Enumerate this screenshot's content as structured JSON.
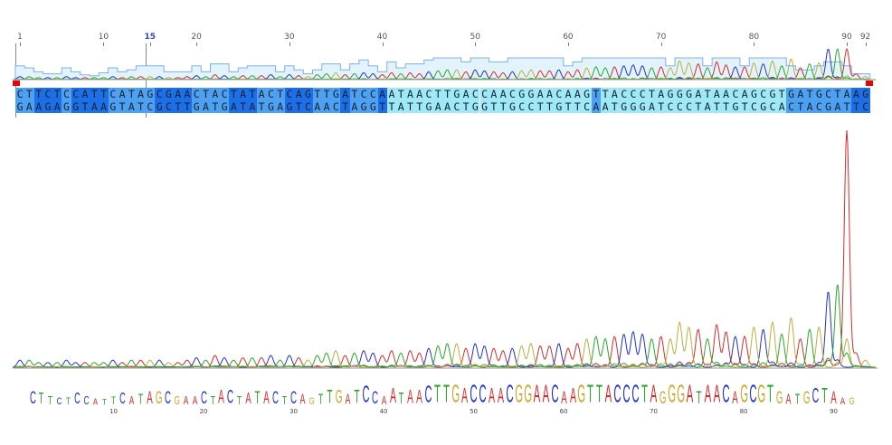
{
  "ruler": {
    "labels": [
      "1",
      "10",
      "15",
      "20",
      "30",
      "40",
      "50",
      "60",
      "70",
      "80",
      "90",
      "92"
    ],
    "positions": [
      1,
      10,
      15,
      20,
      30,
      40,
      50,
      60,
      70,
      80,
      90,
      92
    ],
    "cursor_position": 15
  },
  "sequence": {
    "top": "CTTCTCCATTCATAGCGAACTACTATACTCAGTTGATCCAATAACTTGACCAACGGAACAAGTTACCCTAGGGATAACAGCGTGATGCTAAG",
    "bottom": "GAAGAGGTAAGTATCGCTTGATGATATGAGTCAACTAGGTTATTGAACTGGTTGCCTTGTTCAATGGGATCCCTATTGTCGCACTACGATTC",
    "shading": "mmdddmddddmmmmmddddmmmmdddmmmdddmmmdmmmdllllllllllllllllllllllmllllllllllllllllllllmmmmmmmddd"
  },
  "logo": {
    "tick_labels": [
      "10",
      "20",
      "30",
      "40",
      "50",
      "60",
      "70",
      "80",
      "90"
    ],
    "tick_positions": [
      10,
      20,
      30,
      40,
      50,
      60,
      70,
      80,
      90
    ]
  },
  "colors": {
    "A": "#d42c2c",
    "C": "#2233cc",
    "G": "#c9a82a",
    "T": "#2aa82a",
    "trace_G": "#b8b040",
    "quality": "#7fb0ea",
    "quality_fill": "#e3f3fb"
  },
  "chart_data": {
    "type": "line",
    "title": "",
    "xlabel": "",
    "ylabel": "",
    "x_range": [
      1,
      92
    ],
    "quality": [
      0.6,
      0.5,
      0.3,
      0.2,
      0.2,
      0.5,
      0.3,
      0.15,
      0.1,
      0.25,
      0.5,
      0.3,
      0.4,
      0.6,
      0.6,
      0.6,
      0.3,
      0.3,
      0.3,
      0.6,
      0.3,
      0.7,
      0.7,
      0.3,
      0.5,
      0.6,
      0.6,
      0.6,
      0.3,
      0.6,
      0.4,
      0.2,
      0.4,
      0.7,
      0.7,
      0.4,
      0.7,
      0.9,
      0.6,
      0.3,
      0.8,
      0.5,
      0.7,
      0.7,
      0.9,
      1,
      1,
      1,
      0.8,
      1,
      1,
      0.8,
      0.8,
      1,
      1,
      1,
      1,
      1,
      1,
      0.6,
      0.8,
      1,
      1,
      1,
      1,
      1,
      1,
      1,
      1,
      1,
      0.6,
      1,
      1,
      1,
      0.6,
      1,
      1,
      1,
      0.6,
      1,
      1,
      1,
      1,
      0.6,
      0.4,
      0.4,
      0.6,
      0.8,
      0.8,
      0.6,
      0.2,
      0.2
    ],
    "signal": [
      0.03,
      0.03,
      0.02,
      0.02,
      0.02,
      0.03,
      0.02,
      0.02,
      0.02,
      0.02,
      0.03,
      0.02,
      0.03,
      0.03,
      0.03,
      0.03,
      0.02,
      0.02,
      0.03,
      0.04,
      0.03,
      0.05,
      0.04,
      0.03,
      0.04,
      0.04,
      0.04,
      0.05,
      0.03,
      0.05,
      0.04,
      0.03,
      0.05,
      0.06,
      0.07,
      0.05,
      0.06,
      0.07,
      0.06,
      0.05,
      0.07,
      0.06,
      0.07,
      0.06,
      0.08,
      0.09,
      0.1,
      0.1,
      0.08,
      0.1,
      0.09,
      0.08,
      0.07,
      0.08,
      0.09,
      0.1,
      0.09,
      0.09,
      0.1,
      0.08,
      0.1,
      0.12,
      0.13,
      0.12,
      0.13,
      0.14,
      0.15,
      0.14,
      0.12,
      0.13,
      0.12,
      0.19,
      0.17,
      0.16,
      0.12,
      0.18,
      0.15,
      0.13,
      0.13,
      0.17,
      0.16,
      0.19,
      0.14,
      0.21,
      0.12,
      0.16,
      0.17,
      0.32,
      0.35,
      1.0,
      0.06,
      0.03
    ]
  }
}
